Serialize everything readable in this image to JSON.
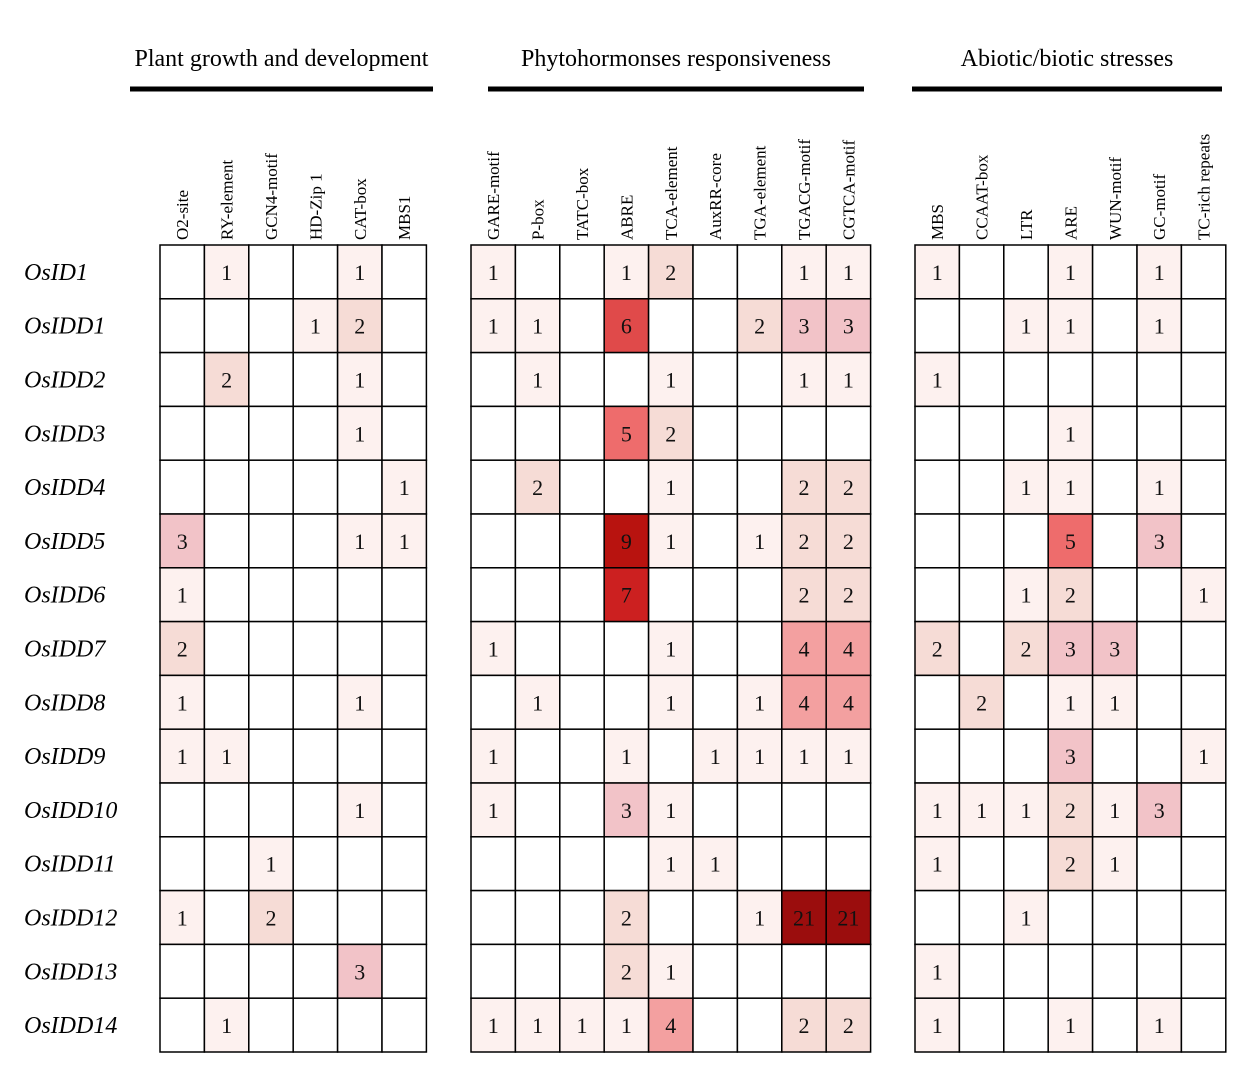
{
  "chart_data": {
    "type": "heatmap",
    "groups": [
      {
        "title": "Plant growth and development",
        "columns": [
          "O2-site",
          "RY-element",
          "GCN4-motif",
          "HD-Zip 1",
          "CAT-box",
          "MBS1"
        ]
      },
      {
        "title": "Phytohormonses responsiveness",
        "columns": [
          "GARE-motif",
          "P-box",
          "TATC-box",
          "ABRE",
          "TCA-element",
          "AuxRR-core",
          "TGA-element",
          "TGACG-motif",
          "CGTCA-motif"
        ]
      },
      {
        "title": "Abiotic/biotic stresses",
        "columns": [
          "MBS",
          "CCAAT-box",
          "LTR",
          "ARE",
          "WUN-motif",
          "GC-motif",
          "TC-rich repeats"
        ]
      }
    ],
    "rows": [
      "OsID1",
      "OsIDD1",
      "OsIDD2",
      "OsIDD3",
      "OsIDD4",
      "OsIDD5",
      "OsIDD6",
      "OsIDD7",
      "OsIDD8",
      "OsIDD9",
      "OsIDD10",
      "OsIDD11",
      "OsIDD12",
      "OsIDD13",
      "OsIDD14"
    ],
    "values": [
      [
        null,
        1,
        null,
        null,
        1,
        null,
        1,
        null,
        null,
        1,
        2,
        null,
        null,
        1,
        1,
        1,
        null,
        null,
        1,
        null,
        1,
        null
      ],
      [
        null,
        null,
        null,
        1,
        2,
        null,
        1,
        1,
        null,
        6,
        null,
        null,
        2,
        3,
        3,
        null,
        null,
        1,
        1,
        null,
        1,
        null
      ],
      [
        null,
        2,
        null,
        null,
        1,
        null,
        null,
        1,
        null,
        null,
        1,
        null,
        null,
        1,
        1,
        1,
        null,
        null,
        null,
        null,
        null,
        null
      ],
      [
        null,
        null,
        null,
        null,
        1,
        null,
        null,
        null,
        null,
        5,
        2,
        null,
        null,
        null,
        null,
        null,
        null,
        null,
        1,
        null,
        null,
        null
      ],
      [
        null,
        null,
        null,
        null,
        null,
        1,
        null,
        2,
        null,
        null,
        1,
        null,
        null,
        2,
        2,
        null,
        null,
        1,
        1,
        null,
        1,
        null
      ],
      [
        3,
        null,
        null,
        null,
        1,
        1,
        null,
        null,
        null,
        9,
        1,
        null,
        1,
        2,
        2,
        null,
        null,
        null,
        5,
        null,
        3,
        null
      ],
      [
        1,
        null,
        null,
        null,
        null,
        null,
        null,
        null,
        null,
        7,
        null,
        null,
        null,
        2,
        2,
        null,
        null,
        1,
        2,
        null,
        null,
        1
      ],
      [
        2,
        null,
        null,
        null,
        null,
        null,
        1,
        null,
        null,
        null,
        1,
        null,
        null,
        4,
        4,
        2,
        null,
        2,
        3,
        3,
        null,
        null
      ],
      [
        1,
        null,
        null,
        null,
        1,
        null,
        null,
        1,
        null,
        null,
        1,
        null,
        1,
        4,
        4,
        null,
        2,
        null,
        1,
        1,
        null,
        null
      ],
      [
        1,
        1,
        null,
        null,
        null,
        null,
        1,
        null,
        null,
        1,
        null,
        1,
        1,
        1,
        1,
        null,
        null,
        null,
        3,
        null,
        null,
        1
      ],
      [
        null,
        null,
        null,
        null,
        1,
        null,
        1,
        null,
        null,
        3,
        1,
        null,
        null,
        null,
        null,
        1,
        1,
        1,
        2,
        1,
        3,
        null
      ],
      [
        null,
        null,
        1,
        null,
        null,
        null,
        null,
        null,
        null,
        null,
        1,
        1,
        null,
        null,
        null,
        1,
        null,
        null,
        2,
        1,
        null,
        null
      ],
      [
        1,
        null,
        2,
        null,
        null,
        null,
        null,
        null,
        null,
        2,
        null,
        null,
        1,
        21,
        21,
        null,
        null,
        1,
        null,
        null,
        null,
        null
      ],
      [
        null,
        null,
        null,
        null,
        3,
        null,
        null,
        null,
        null,
        2,
        1,
        null,
        null,
        null,
        null,
        1,
        null,
        null,
        null,
        null,
        null,
        null
      ],
      [
        null,
        1,
        null,
        null,
        null,
        null,
        1,
        1,
        1,
        1,
        4,
        null,
        null,
        2,
        2,
        1,
        null,
        null,
        1,
        null,
        1,
        null
      ]
    ],
    "color_scale": {
      "low": "#fdf1ef",
      "high": "#9b0d0d"
    },
    "colors": {
      "1": "#fdf1ef",
      "2": "#f6dcd6",
      "3": "#f2c3c8",
      "4": "#f3a0a0",
      "5": "#ee6c6c",
      "6": "#e04a4a",
      "7": "#cc2020",
      "9": "#b8130f",
      "21": "#9b0d0d"
    }
  }
}
